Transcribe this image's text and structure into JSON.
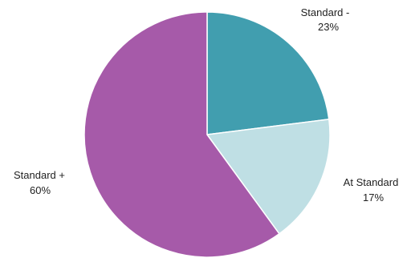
{
  "chart_data": {
    "type": "pie",
    "title": "",
    "slices": [
      {
        "name": "Standard -",
        "value": 23,
        "label": "23%",
        "color": "#419EAF"
      },
      {
        "name": "At Standard",
        "value": 17,
        "label": "17%",
        "color": "#BFDFE4"
      },
      {
        "name": "Standard +",
        "value": 60,
        "label": "60%",
        "color": "#A65AA9"
      }
    ],
    "start_angle": "12 o'clock",
    "direction": "clockwise",
    "legend": "none",
    "labels_position": "outside"
  }
}
